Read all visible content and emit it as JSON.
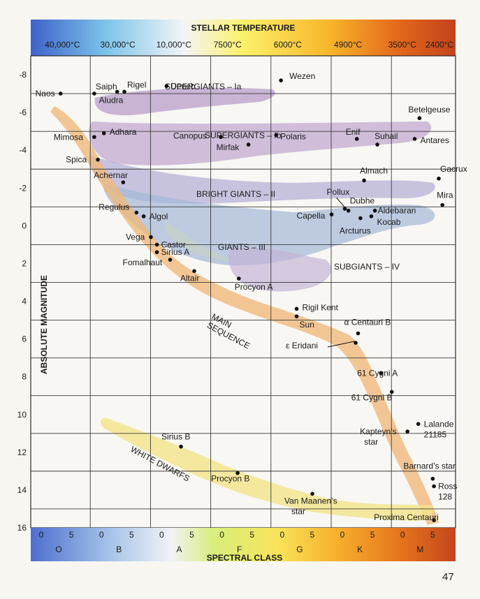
{
  "chart_data": {
    "type": "scatter",
    "title": "STELLAR TEMPERATURE",
    "xlabel": "SPECTRAL CLASS",
    "ylabel": "ABSOLUTE MAGNITUDE",
    "ylim": [
      16,
      -9
    ],
    "grid": true,
    "temperature_ticks": [
      {
        "label": "40,000°C",
        "sp": 2.0
      },
      {
        "label": "30,000°C",
        "sp": 11.2
      },
      {
        "label": "10,000°C",
        "sp": 20.5
      },
      {
        "label": "7500°C",
        "sp": 30.0
      },
      {
        "label": "6000°C",
        "sp": 40.0
      },
      {
        "label": "4900°C",
        "sp": 50.0
      },
      {
        "label": "3500°C",
        "sp": 59.0
      },
      {
        "label": "2400°C",
        "sp": 65.2
      }
    ],
    "spectral_ticks": [
      {
        "label": "0",
        "sp": 0
      },
      {
        "label": "5",
        "sp": 5
      },
      {
        "label": "0",
        "sp": 10
      },
      {
        "label": "5",
        "sp": 15
      },
      {
        "label": "0",
        "sp": 20
      },
      {
        "label": "5",
        "sp": 25
      },
      {
        "label": "0",
        "sp": 30
      },
      {
        "label": "5",
        "sp": 35
      },
      {
        "label": "0",
        "sp": 40
      },
      {
        "label": "5",
        "sp": 45
      },
      {
        "label": "0",
        "sp": 50
      },
      {
        "label": "5",
        "sp": 55
      },
      {
        "label": "0",
        "sp": 60
      },
      {
        "label": "5",
        "sp": 65
      }
    ],
    "spectral_classes": [
      "O",
      "B",
      "A",
      "F",
      "G",
      "K",
      "M"
    ],
    "magnitude_ticks": [
      "-8",
      "-6",
      "-4",
      "-2",
      "0",
      "2",
      "4",
      "6",
      "8",
      "10",
      "12",
      "14",
      "16"
    ],
    "regions": [
      {
        "name": "SUPERGIANTS – Ia",
        "color": "#b79ac9"
      },
      {
        "name": "SUPERGIANTS – Ib",
        "color": "#b79ac9"
      },
      {
        "name": "BRIGHT GIANTS – II",
        "color": "#a9a3d0"
      },
      {
        "name": "GIANTS – III",
        "color": "#a6b8d8"
      },
      {
        "name": "SUBGIANTS – IV",
        "color": "#c2b3d6"
      },
      {
        "name": "MAIN SEQUENCE",
        "color": "#f0b878"
      },
      {
        "name": "WHITE DWARFS",
        "color": "#f2e48a"
      }
    ],
    "stars": [
      {
        "name": "Naos",
        "x": 4.6,
        "y": -7.0
      },
      {
        "name": "Saiph",
        "x": 10.2,
        "y": -7.0
      },
      {
        "name": "Rigel",
        "x": 15.2,
        "y": -7.1
      },
      {
        "name": "Aludra",
        "x": 14.0,
        "y": -7.1
      },
      {
        "name": "Deneb",
        "x": 22.2,
        "y": -7.4
      },
      {
        "name": "Wezen",
        "x": 41.2,
        "y": -7.7
      },
      {
        "name": "Betelgeuse",
        "x": 64.2,
        "y": -5.7
      },
      {
        "name": "Mimosa",
        "x": 10.2,
        "y": -4.7
      },
      {
        "name": "Adhara",
        "x": 11.8,
        "y": -4.9
      },
      {
        "name": "Canopus",
        "x": 31.2,
        "y": -4.7
      },
      {
        "name": "Mirfak",
        "x": 35.8,
        "y": -4.3
      },
      {
        "name": "Polaris",
        "x": 40.4,
        "y": -4.8
      },
      {
        "name": "Enif",
        "x": 53.8,
        "y": -4.6
      },
      {
        "name": "Suhail",
        "x": 57.2,
        "y": -4.3
      },
      {
        "name": "Antares",
        "x": 63.4,
        "y": -4.6
      },
      {
        "name": "Spica",
        "x": 10.8,
        "y": -3.5
      },
      {
        "name": "Achernar",
        "x": 15.0,
        "y": -2.3
      },
      {
        "name": "Almach",
        "x": 55.0,
        "y": -2.4
      },
      {
        "name": "Gacrux",
        "x": 67.4,
        "y": -2.5
      },
      {
        "name": "Regulus",
        "x": 17.2,
        "y": -0.7
      },
      {
        "name": "Algol",
        "x": 18.4,
        "y": -0.5
      },
      {
        "name": "Pollux",
        "x": 51.8,
        "y": -0.9
      },
      {
        "name": "Dubhe",
        "x": 52.4,
        "y": -0.8
      },
      {
        "name": "Aldebaran",
        "x": 56.8,
        "y": -0.8
      },
      {
        "name": "Mira",
        "x": 68.0,
        "y": -1.1
      },
      {
        "name": "Capella",
        "x": 49.6,
        "y": -0.6
      },
      {
        "name": "Kocab",
        "x": 56.2,
        "y": -0.5
      },
      {
        "name": "Arcturus",
        "x": 54.4,
        "y": -0.4
      },
      {
        "name": "Vega",
        "x": 19.6,
        "y": 0.6
      },
      {
        "name": "Castor",
        "x": 20.6,
        "y": 1.0
      },
      {
        "name": "Sirius A",
        "x": 20.6,
        "y": 1.4
      },
      {
        "name": "Fomalhaut",
        "x": 22.8,
        "y": 1.8
      },
      {
        "name": "Altair",
        "x": 26.8,
        "y": 2.4
      },
      {
        "name": "Procyon A",
        "x": 34.2,
        "y": 2.8
      },
      {
        "name": "Rigil Kent",
        "x": 43.8,
        "y": 4.4
      },
      {
        "name": "Sun",
        "x": 43.8,
        "y": 4.8
      },
      {
        "name": "α Centauri B",
        "x": 54.0,
        "y": 5.7
      },
      {
        "name": "ε Eridani",
        "x": 53.6,
        "y": 6.2
      },
      {
        "name": "61 Cygni A",
        "x": 57.8,
        "y": 7.8
      },
      {
        "name": "61 Cygni B",
        "x": 59.6,
        "y": 8.8
      },
      {
        "name": "Kapteyn’s star",
        "x": 62.2,
        "y": 10.9
      },
      {
        "name": "Lalande 21185",
        "x": 64.0,
        "y": 10.5
      },
      {
        "name": "Barnard’s star",
        "x": 66.4,
        "y": 13.4
      },
      {
        "name": "Ross 128",
        "x": 66.6,
        "y": 13.8
      },
      {
        "name": "Proxima Centauri",
        "x": 66.6,
        "y": 15.6
      },
      {
        "name": "Sirius B",
        "x": 24.6,
        "y": 11.7
      },
      {
        "name": "Procyon B",
        "x": 34.0,
        "y": 13.1
      },
      {
        "name": "Van Maanen’s star",
        "x": 46.4,
        "y": 14.2
      }
    ]
  },
  "page": {
    "number": "47"
  }
}
